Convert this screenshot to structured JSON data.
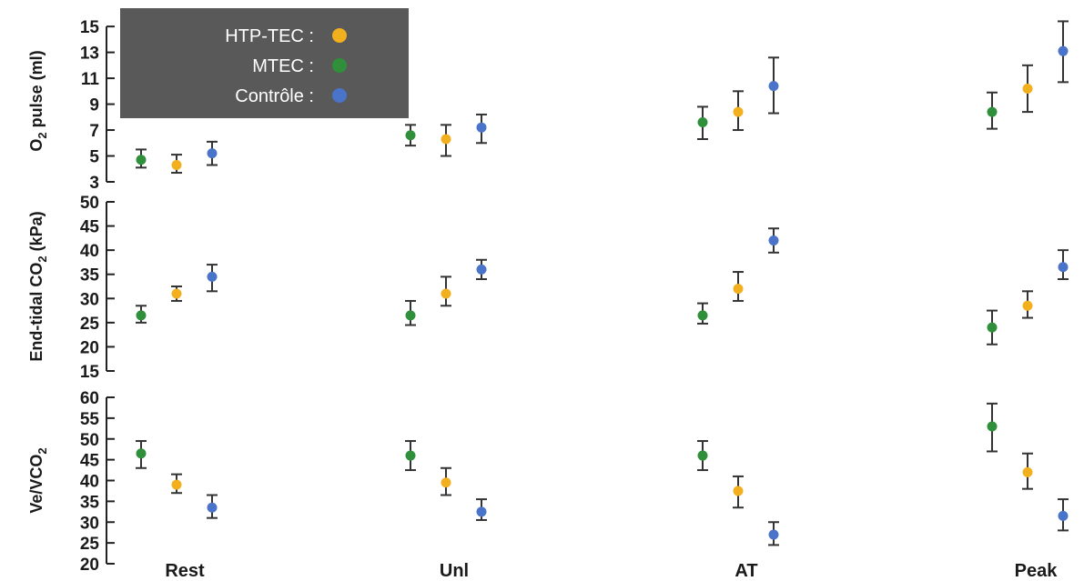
{
  "chart_data": {
    "type": "scatter",
    "categories": [
      "Rest",
      "Unl",
      "AT",
      "Peak"
    ],
    "colors": {
      "HTP-TEC": "#f2b01e",
      "MTEC": "#2f8f3a",
      "Contrôle": "#4a74c9",
      "legend_bg": "#595959"
    },
    "legend": {
      "placement": "top-left",
      "entries": [
        {
          "name": "HTP-TEC",
          "label": "HTP-TEC :"
        },
        {
          "name": "MTEC",
          "label": "MTEC :"
        },
        {
          "name": "Contrôle",
          "label": "Contrôle :"
        }
      ]
    },
    "panels": [
      {
        "ylabel_main": "O",
        "ylabel_sub": "2",
        "ylabel_rest": " pulse (ml)",
        "ylim": [
          3,
          15.5
        ],
        "yticks": [
          "3",
          "5",
          "7",
          "9",
          "11",
          "13",
          "15"
        ],
        "series": [
          {
            "name": "MTEC",
            "values": [
              4.7,
              6.6,
              7.6,
              8.4
            ],
            "low": [
              4.1,
              5.8,
              6.3,
              7.1
            ],
            "high": [
              5.5,
              7.4,
              8.8,
              9.9
            ]
          },
          {
            "name": "HTP-TEC",
            "values": [
              4.3,
              6.3,
              8.4,
              10.2
            ],
            "low": [
              3.7,
              5.0,
              7.0,
              8.4
            ],
            "high": [
              5.1,
              7.4,
              10.0,
              12.0
            ]
          },
          {
            "name": "Contrôle",
            "values": [
              5.2,
              7.2,
              10.4,
              13.1
            ],
            "low": [
              4.3,
              6.0,
              8.3,
              10.7
            ],
            "high": [
              6.1,
              8.2,
              12.6,
              15.4
            ]
          }
        ]
      },
      {
        "ylabel_main": "End-tidal CO",
        "ylabel_sub": "2",
        "ylabel_rest": " (kPa)",
        "ylim": [
          15,
          50
        ],
        "yticks": [
          "15",
          "20",
          "25",
          "30",
          "35",
          "40",
          "45",
          "50"
        ],
        "series": [
          {
            "name": "MTEC",
            "values": [
              26.5,
              26.5,
              26.5,
              24.0
            ],
            "low": [
              25.0,
              24.5,
              24.8,
              20.5
            ],
            "high": [
              28.5,
              29.5,
              29.0,
              27.5
            ]
          },
          {
            "name": "HTP-TEC",
            "values": [
              31.0,
              31.0,
              32.0,
              28.5
            ],
            "low": [
              29.5,
              28.5,
              29.5,
              26.0
            ],
            "high": [
              32.5,
              34.5,
              35.5,
              31.5
            ]
          },
          {
            "name": "Contrôle",
            "values": [
              34.5,
              36.0,
              42.0,
              36.5
            ],
            "low": [
              31.5,
              34.0,
              39.5,
              34.0
            ],
            "high": [
              37.0,
              38.0,
              44.5,
              40.0
            ]
          }
        ]
      },
      {
        "ylabel_main": "Ve/VCO",
        "ylabel_sub": "2",
        "ylabel_rest": "",
        "ylim": [
          20,
          60
        ],
        "yticks": [
          "20",
          "25",
          "30",
          "35",
          "40",
          "45",
          "50",
          "55",
          "60"
        ],
        "series": [
          {
            "name": "MTEC",
            "values": [
              46.5,
              46.0,
              46.0,
              53.0
            ],
            "low": [
              43.0,
              42.5,
              42.5,
              47.0
            ],
            "high": [
              49.5,
              49.5,
              49.5,
              58.5
            ]
          },
          {
            "name": "HTP-TEC",
            "values": [
              39.0,
              39.5,
              37.5,
              42.0
            ],
            "low": [
              37.0,
              36.5,
              33.5,
              38.0
            ],
            "high": [
              41.5,
              43.0,
              41.0,
              46.5
            ]
          },
          {
            "name": "Contrôle",
            "values": [
              33.5,
              32.5,
              27.0,
              31.5
            ],
            "low": [
              31.0,
              30.5,
              24.5,
              28.0
            ],
            "high": [
              36.5,
              35.5,
              30.0,
              35.5
            ]
          }
        ]
      }
    ]
  }
}
